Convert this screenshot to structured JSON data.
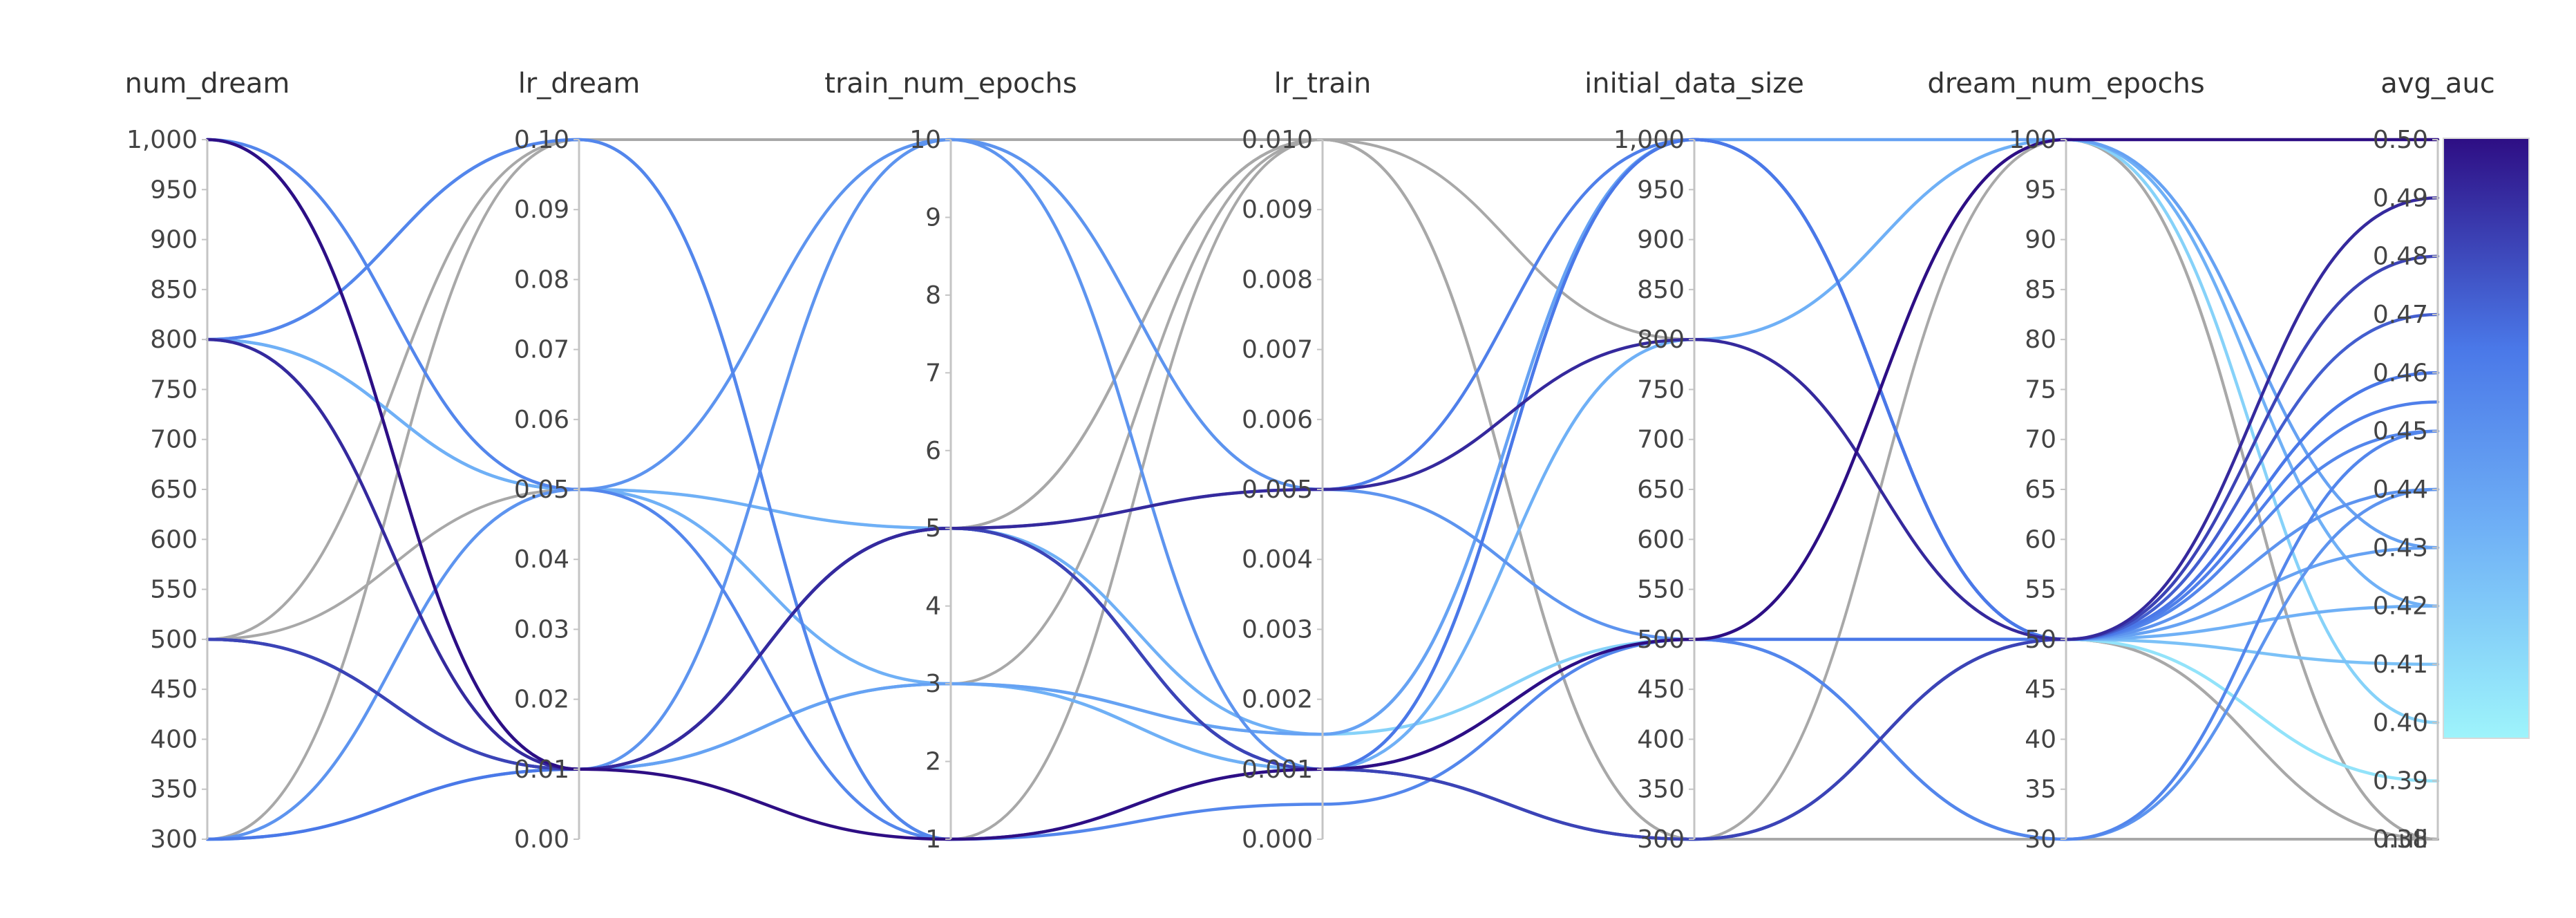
{
  "chart_data": {
    "type": "parallel_coordinates",
    "axes": [
      {
        "name": "num_dream",
        "range": [
          300,
          1000
        ],
        "ticks": [
          "1,000",
          "950",
          "900",
          "850",
          "800",
          "750",
          "700",
          "650",
          "600",
          "550",
          "500",
          "450",
          "400",
          "350",
          "300"
        ],
        "tick_values": [
          1000,
          950,
          900,
          850,
          800,
          750,
          700,
          650,
          600,
          550,
          500,
          450,
          400,
          350,
          300
        ]
      },
      {
        "name": "lr_dream",
        "range": [
          0,
          0.1
        ],
        "ticks": [
          "0.10",
          "0.09",
          "0.08",
          "0.07",
          "0.06",
          "0.05",
          "0.04",
          "0.03",
          "0.02",
          "0.01",
          "0.00"
        ],
        "tick_values": [
          0.1,
          0.09,
          0.08,
          0.07,
          0.06,
          0.05,
          0.04,
          0.03,
          0.02,
          0.01,
          0.0
        ]
      },
      {
        "name": "train_num_epochs",
        "range": [
          1,
          10
        ],
        "ticks": [
          "10",
          "9",
          "8",
          "7",
          "6",
          "5",
          "4",
          "3",
          "2",
          "1"
        ],
        "tick_values": [
          10,
          9,
          8,
          7,
          6,
          5,
          4,
          3,
          2,
          1
        ]
      },
      {
        "name": "lr_train",
        "range": [
          0,
          0.01
        ],
        "ticks": [
          "0.010",
          "0.009",
          "0.008",
          "0.007",
          "0.006",
          "0.005",
          "0.004",
          "0.003",
          "0.002",
          "0.001",
          "0.000"
        ],
        "tick_values": [
          0.01,
          0.009,
          0.008,
          0.007,
          0.006,
          0.005,
          0.004,
          0.003,
          0.002,
          0.001,
          0.0
        ]
      },
      {
        "name": "initial_data_size",
        "range": [
          300,
          1000
        ],
        "ticks": [
          "1,000",
          "950",
          "900",
          "850",
          "800",
          "750",
          "700",
          "650",
          "600",
          "550",
          "500",
          "450",
          "400",
          "350",
          "300"
        ],
        "tick_values": [
          1000,
          950,
          900,
          850,
          800,
          750,
          700,
          650,
          600,
          550,
          500,
          450,
          400,
          350,
          300
        ]
      },
      {
        "name": "dream_num_epochs",
        "range": [
          30,
          100
        ],
        "ticks": [
          "100",
          "95",
          "90",
          "85",
          "80",
          "75",
          "70",
          "65",
          "60",
          "55",
          "50",
          "45",
          "40",
          "35",
          "30"
        ],
        "tick_values": [
          100,
          95,
          90,
          85,
          80,
          75,
          70,
          65,
          60,
          55,
          50,
          45,
          40,
          35,
          30
        ]
      },
      {
        "name": "avg_auc",
        "range": [
          0.38,
          0.5
        ],
        "null_label": "null",
        "ticks": [
          "0.50",
          "0.49",
          "0.48",
          "0.47",
          "0.46",
          "0.45",
          "0.44",
          "0.43",
          "0.42",
          "0.41",
          "0.40",
          "0.39",
          "0.38"
        ],
        "tick_values": [
          0.5,
          0.49,
          0.48,
          0.47,
          0.46,
          0.45,
          0.44,
          0.43,
          0.42,
          0.41,
          0.4,
          0.39,
          0.38
        ]
      }
    ],
    "colorscale": {
      "min": 0.38,
      "max": 0.5,
      "stops": [
        "#9ef4fb",
        "#6fb0f6",
        "#4a78e8",
        "#2e0e84"
      ],
      "null_color": "#a8a8a8"
    },
    "runs": [
      [
        1000,
        0.01,
        5,
        0.001,
        500,
        50,
        0.46
      ],
      [
        1000,
        0.01,
        1,
        0.001,
        500,
        100,
        0.5
      ],
      [
        800,
        0.1,
        1,
        0.001,
        1000,
        50,
        0.45
      ],
      [
        800,
        0.05,
        5,
        0.0015,
        1000,
        50,
        0.42
      ],
      [
        800,
        0.01,
        5,
        0.005,
        800,
        50,
        0.49
      ],
      [
        500,
        0.01,
        5,
        0.001,
        300,
        50,
        0.47
      ],
      [
        500,
        0.01,
        3,
        0.0015,
        1000,
        100,
        0.43
      ],
      [
        300,
        0.05,
        10,
        0.005,
        500,
        30,
        0.44
      ],
      [
        300,
        0.01,
        5,
        0.001,
        1000,
        50,
        0.46
      ],
      [
        300,
        0.01,
        3,
        0.001,
        300,
        50,
        0.41
      ],
      [
        300,
        0.01,
        3,
        0.0015,
        500,
        100,
        0.4
      ],
      [
        500,
        0.01,
        5,
        0.001,
        300,
        50,
        0.48
      ],
      [
        800,
        0.1,
        1,
        0.001,
        500,
        50,
        0.43
      ],
      [
        800,
        0.05,
        3,
        0.001,
        800,
        100,
        0.42
      ],
      [
        1000,
        0.05,
        1,
        0.0005,
        500,
        30,
        0.45
      ],
      [
        500,
        0.01,
        5,
        0.005,
        1000,
        50,
        0.455
      ],
      [
        800,
        0.01,
        10,
        0.001,
        1000,
        50,
        0.44
      ],
      [
        1000,
        0.01,
        5,
        0.001,
        300,
        50,
        0.39
      ],
      [
        500,
        0.1,
        10,
        0.005,
        1000,
        100,
        null
      ],
      [
        1000,
        0.05,
        5,
        0.01,
        1000,
        100,
        null
      ],
      [
        800,
        0.01,
        5,
        0.01,
        300,
        50,
        null
      ],
      [
        500,
        0.05,
        3,
        0.01,
        800,
        50,
        null
      ],
      [
        300,
        0.1,
        1,
        0.01,
        300,
        100,
        null
      ],
      [
        1000,
        0.01,
        5,
        0.01,
        1000,
        50,
        null
      ],
      [
        500,
        0.01,
        10,
        0.01,
        300,
        30,
        null
      ]
    ]
  }
}
